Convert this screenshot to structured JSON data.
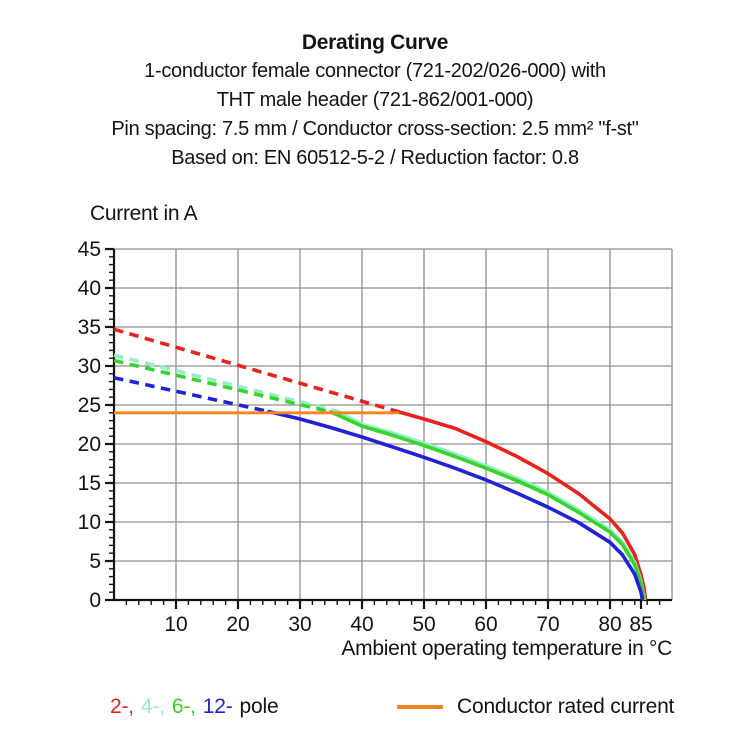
{
  "page": {
    "title": "Derating Curve",
    "subtitle_lines": [
      "1-conductor female connector (721-202/026-000) with",
      "THT male header (721-862/001-000)",
      "Pin spacing: 7.5 mm / Conductor cross-section: 2.5 mm² \"f-st\"",
      "Based on: EN 60512-5-2 / Reduction factor: 0.8"
    ]
  },
  "chart_data": {
    "type": "line",
    "title": "Derating Curve",
    "ylabel": "Current in A",
    "xlabel": "Ambient operating temperature in °C",
    "xlim": [
      0,
      90
    ],
    "ylim": [
      0,
      45
    ],
    "x_major_ticks": [
      10,
      20,
      30,
      40,
      50,
      60,
      70,
      80,
      85
    ],
    "x_minor_step": 2,
    "y_major_ticks": [
      0,
      5,
      10,
      15,
      20,
      25,
      30,
      35,
      40,
      45
    ],
    "y_minor_step": 1,
    "x_gridline_step": 10,
    "y_gridline_step": 5,
    "grid_on": true,
    "grid_color": "#8f8f8f",
    "axis_color": "#141414",
    "series": [
      {
        "name": "2-pole",
        "color": "#e8231d",
        "style_dashed_then_solid": true,
        "dashed": [
          [
            0,
            34.7
          ],
          [
            46,
            24.1
          ]
        ],
        "solid": [
          [
            46,
            24.1
          ],
          [
            50,
            23.2
          ],
          [
            55,
            22.0
          ],
          [
            60,
            20.3
          ],
          [
            65,
            18.4
          ],
          [
            70,
            16.2
          ],
          [
            75,
            13.6
          ],
          [
            80,
            10.4
          ],
          [
            82,
            8.6
          ],
          [
            84,
            5.8
          ],
          [
            85,
            3.2
          ],
          [
            85.5,
            1.5
          ],
          [
            85.7,
            0.2
          ]
        ]
      },
      {
        "name": "4-pole",
        "color": "#93eec4",
        "style_dashed_then_solid": true,
        "dashed": [
          [
            0,
            31.4
          ],
          [
            36,
            24.2
          ]
        ],
        "solid": [
          [
            36,
            24.2
          ],
          [
            40,
            22.5
          ],
          [
            45,
            21.4
          ],
          [
            50,
            20.1
          ],
          [
            55,
            18.7
          ],
          [
            60,
            17.2
          ],
          [
            65,
            15.6
          ],
          [
            70,
            13.8
          ],
          [
            75,
            11.5
          ],
          [
            80,
            9.0
          ],
          [
            82,
            7.4
          ],
          [
            84,
            4.8
          ],
          [
            85,
            2.4
          ],
          [
            85.5,
            0.2
          ]
        ]
      },
      {
        "name": "6-pole",
        "color": "#37d52b",
        "style_dashed_then_solid": true,
        "dashed": [
          [
            0,
            30.7
          ],
          [
            35,
            24.1
          ]
        ],
        "solid": [
          [
            35,
            24.1
          ],
          [
            40,
            22.3
          ],
          [
            45,
            21.1
          ],
          [
            50,
            19.8
          ],
          [
            55,
            18.4
          ],
          [
            60,
            16.9
          ],
          [
            65,
            15.3
          ],
          [
            70,
            13.5
          ],
          [
            75,
            11.2
          ],
          [
            80,
            8.7
          ],
          [
            82,
            7.1
          ],
          [
            84,
            4.5
          ],
          [
            85,
            2.1
          ],
          [
            85.4,
            0.2
          ]
        ]
      },
      {
        "name": "12-pole",
        "color": "#2121d7",
        "style_dashed_then_solid": true,
        "dashed": [
          [
            0,
            28.5
          ],
          [
            25,
            24.15
          ]
        ],
        "solid": [
          [
            25,
            24.15
          ],
          [
            30,
            23.2
          ],
          [
            35,
            22.1
          ],
          [
            40,
            20.9
          ],
          [
            45,
            19.6
          ],
          [
            50,
            18.3
          ],
          [
            55,
            16.9
          ],
          [
            60,
            15.4
          ],
          [
            65,
            13.7
          ],
          [
            70,
            11.9
          ],
          [
            75,
            9.9
          ],
          [
            80,
            7.4
          ],
          [
            82,
            5.8
          ],
          [
            84,
            3.3
          ],
          [
            85,
            1.0
          ],
          [
            85.2,
            0.2
          ]
        ]
      }
    ],
    "reference_line": {
      "name": "Conductor rated current",
      "color": "#f5831e",
      "y": 24,
      "x_start": 0,
      "x_end": 46
    },
    "legend_position": "bottom"
  },
  "legend": {
    "pole_items": [
      {
        "label": "2-,",
        "color": "#e8231d"
      },
      {
        "label": "4-,",
        "color": "#93eec4"
      },
      {
        "label": "6-,",
        "color": "#37d52b"
      },
      {
        "label": "12-",
        "color": "#2121d7"
      }
    ],
    "pole_suffix": "pole",
    "rated_current_label": "Conductor rated current",
    "rated_current_color": "#f5831e"
  }
}
